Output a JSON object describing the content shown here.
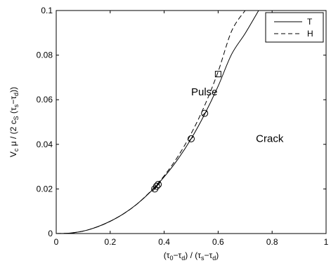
{
  "chart_data": {
    "type": "line",
    "xlim": [
      0,
      1
    ],
    "ylim": [
      0,
      0.1
    ],
    "x_ticks": [
      "0",
      "0.2",
      "0.4",
      "0.6",
      "0.8",
      "1"
    ],
    "y_ticks": [
      "0",
      "0.02",
      "0.04",
      "0.06",
      "0.08",
      "0.1"
    ],
    "x_tick_values": [
      0,
      0.2,
      0.4,
      0.6,
      0.8,
      1
    ],
    "y_tick_values": [
      0,
      0.02,
      0.04,
      0.06,
      0.08,
      0.1
    ],
    "xlabel": {
      "open": "(",
      "t1": "τ",
      "s1": "0",
      "minus1": "−",
      "t2": "τ",
      "s2": "d",
      "mid": ") / (",
      "t3": "τ",
      "s3": "s",
      "minus2": "−",
      "t4": "τ",
      "s4": "d",
      "close": ")"
    },
    "ylabel": {
      "v": "V",
      "vs": "c",
      "mu": " μ / (2 c",
      "cs": "S",
      "open": " (",
      "t1": "τ",
      "s1": "s",
      "minus": "−",
      "t2": "τ",
      "s2": "d",
      "close": "))"
    },
    "legend_position": "top-right",
    "series": [
      {
        "name": "T",
        "style": "solid",
        "x": [
          0.0,
          0.05,
          0.1,
          0.15,
          0.2,
          0.25,
          0.3,
          0.35,
          0.4,
          0.45,
          0.5,
          0.55,
          0.6,
          0.65,
          0.7,
          0.75
        ],
        "y": [
          0.0,
          0.0002,
          0.0011,
          0.0029,
          0.0055,
          0.0089,
          0.0133,
          0.0188,
          0.0254,
          0.0332,
          0.0425,
          0.0535,
          0.0661,
          0.0804,
          0.0897,
          0.1
        ]
      },
      {
        "name": "H",
        "style": "dashed",
        "x": [
          0.0,
          0.05,
          0.1,
          0.15,
          0.2,
          0.25,
          0.3,
          0.35,
          0.4,
          0.45,
          0.5,
          0.55,
          0.6,
          0.65,
          0.7
        ],
        "y": [
          0.0,
          0.0002,
          0.0011,
          0.0029,
          0.0055,
          0.0089,
          0.0133,
          0.019,
          0.0259,
          0.0344,
          0.0448,
          0.0574,
          0.0726,
          0.0908,
          0.1
        ]
      }
    ],
    "markers": [
      {
        "shape": "circle",
        "x": 0.365,
        "y": 0.02
      },
      {
        "shape": "circle",
        "x": 0.372,
        "y": 0.0212
      },
      {
        "shape": "circle",
        "x": 0.378,
        "y": 0.022
      },
      {
        "shape": "circle",
        "x": 0.5,
        "y": 0.0425
      },
      {
        "shape": "circle",
        "x": 0.55,
        "y": 0.0539
      },
      {
        "shape": "square",
        "x": 0.6,
        "y": 0.0715
      }
    ],
    "annotations": [
      {
        "text": "Pulse",
        "x": 0.5,
        "y": 0.062
      },
      {
        "text": "Crack",
        "x": 0.74,
        "y": 0.041
      }
    ]
  }
}
